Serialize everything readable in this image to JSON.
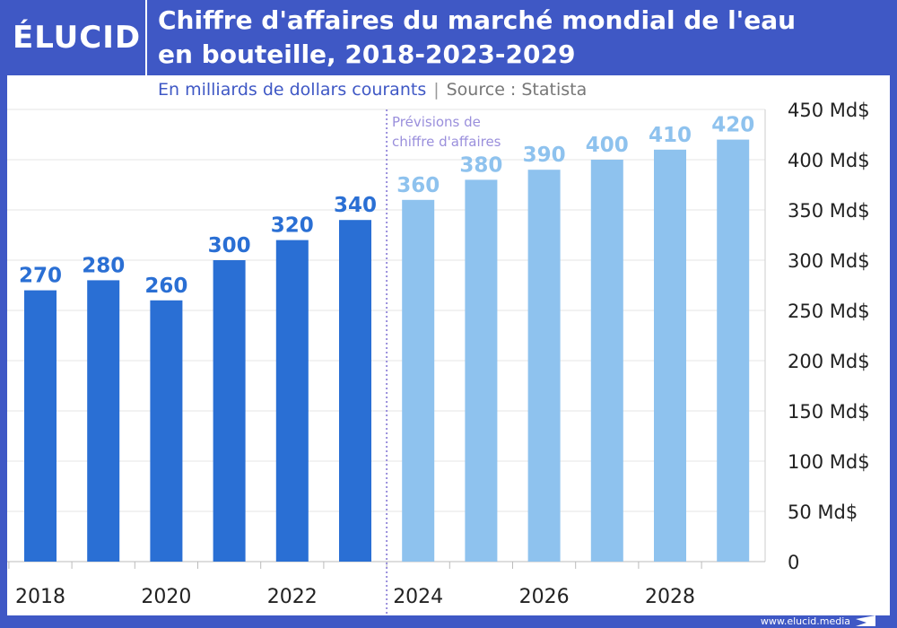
{
  "brand": {
    "logo": "ÉLUCID",
    "footer": "www.elucid.media",
    "color": "#3f58c5"
  },
  "chart_data": {
    "type": "bar",
    "title": "Chiffre d'affaires du marché mondial de l'eau en bouteille, 2018-2023-2029",
    "subtitle": "En milliards de dollars courants",
    "source": "Source : Statista",
    "annotation": "Prévisions de chiffre d'affaires",
    "categories": [
      "2018",
      "2019",
      "2020",
      "2021",
      "2022",
      "2023",
      "2024",
      "2025",
      "2026",
      "2027",
      "2028",
      "2029"
    ],
    "values": [
      270,
      280,
      260,
      300,
      320,
      340,
      360,
      380,
      390,
      400,
      410,
      420
    ],
    "forecast_from": "2024",
    "x_tick_labels": [
      "2018",
      "2020",
      "2022",
      "2024",
      "2026",
      "2028"
    ],
    "y_ticks": [
      0,
      50,
      100,
      150,
      200,
      250,
      300,
      350,
      400,
      450
    ],
    "y_tick_labels": [
      "0",
      "50 Md$",
      "100 Md$",
      "150 Md$",
      "200 Md$",
      "250 Md$",
      "300 Md$",
      "350 Md$",
      "400 Md$",
      "450 Md$"
    ],
    "ylim": [
      0,
      450
    ],
    "y_axis_position": "right",
    "grid": true,
    "colors": {
      "actual": "#2a6fd4",
      "forecast": "#8ec2ee"
    }
  }
}
